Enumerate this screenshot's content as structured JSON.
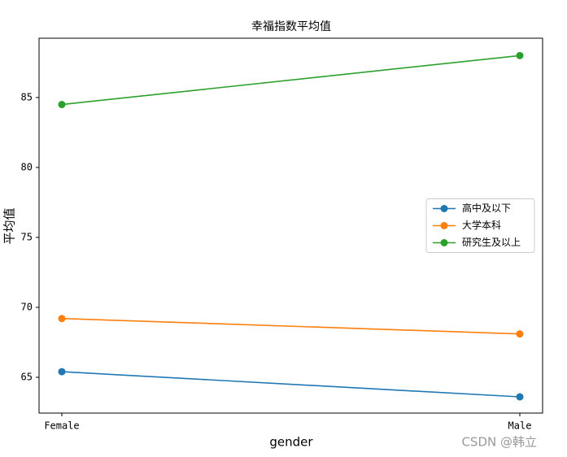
{
  "chart_data": {
    "type": "line",
    "title": "幸福指数平均值",
    "x_label": "gender",
    "y_label": "平均值",
    "categories": [
      "Female",
      "Male"
    ],
    "series": [
      {
        "name": "高中及以下",
        "color": "#1f77b4",
        "values": [
          65.4,
          63.6
        ]
      },
      {
        "name": "大学本科",
        "color": "#ff7f0e",
        "values": [
          69.2,
          68.1
        ]
      },
      {
        "name": "研究生及以上",
        "color": "#2ca02c",
        "values": [
          84.5,
          88.0
        ]
      }
    ],
    "ylim": [
      62.44,
      89.24
    ],
    "yticks": [
      65,
      70,
      75,
      80,
      85
    ],
    "legend": "center right",
    "grid": false,
    "watermark": "CSDN @韩立"
  }
}
